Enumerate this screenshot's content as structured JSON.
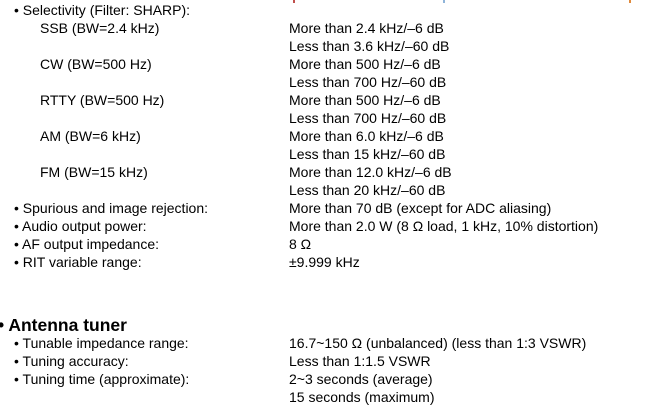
{
  "selectivity": {
    "label": "• Selectivity (Filter: SHARP):",
    "modes": [
      {
        "mode": "SSB (BW=2.4 kHz)",
        "lines": [
          "More than 2.4 kHz/–6 dB",
          "Less than 3.6 kHz/–60 dB"
        ]
      },
      {
        "mode": "CW (BW=500 Hz)",
        "lines": [
          "More than 500 Hz/–6 dB",
          "Less than 700 Hz/–60 dB"
        ]
      },
      {
        "mode": "RTTY (BW=500 Hz)",
        "lines": [
          "More than 500 Hz/–6 dB",
          "Less than 700 Hz/–60 dB"
        ]
      },
      {
        "mode": "AM (BW=6 kHz)",
        "lines": [
          "More than 6.0 kHz/–6 dB",
          "Less than 15 kHz/–60 dB"
        ]
      },
      {
        "mode": "FM (BW=15 kHz)",
        "lines": [
          "More than 12.0 kHz/–6 dB",
          "Less than 20 kHz/–60 dB"
        ]
      }
    ]
  },
  "specs": [
    {
      "label": "• Spurious and image rejection:",
      "value": "More than 70 dB (except for ADC aliasing)"
    },
    {
      "label": "• Audio output power:",
      "value": "More than 2.0 W (8 Ω load, 1 kHz, 10% distortion)"
    },
    {
      "label": "• AF output impedance:",
      "value": "8 Ω"
    },
    {
      "label": "• RIT variable range:",
      "value": "±9.999 kHz"
    }
  ],
  "antenna_tuner": {
    "heading": "• Antenna tuner",
    "specs": [
      {
        "label": "• Tunable impedance range:",
        "value": "16.7~150 Ω (unbalanced) (less than 1:3 VSWR)"
      },
      {
        "label": "• Tuning accuracy:",
        "value": "Less than 1:1.5 VSWR"
      },
      {
        "label": "• Tuning time (approximate):",
        "value": "2~3 seconds (average)"
      },
      {
        "label": "",
        "value": "15 seconds (maximum)"
      }
    ]
  }
}
